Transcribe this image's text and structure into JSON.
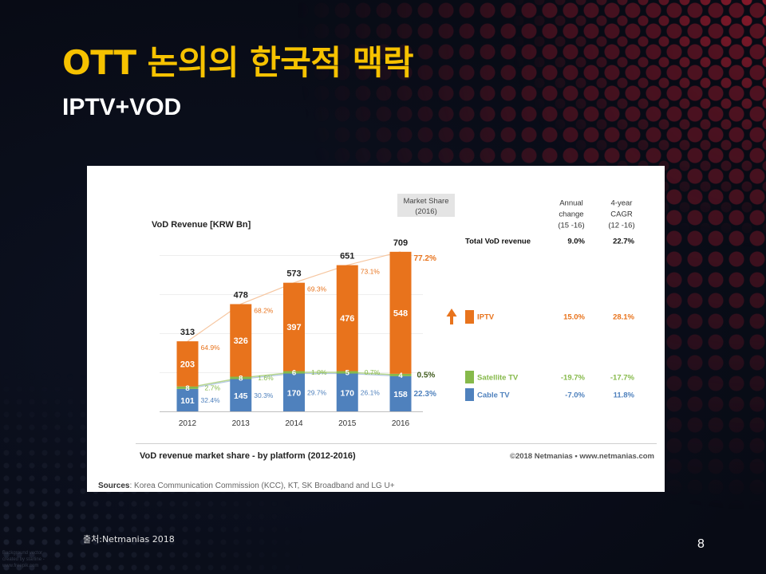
{
  "slide": {
    "title": "OTT 논의의 한국적 맥락",
    "subtitle": "IPTV+VOD",
    "source_note": "출처:Netmanias 2018",
    "page_number": "8",
    "credit": [
      "Background vector",
      "created by starline -",
      "www.freepik.com"
    ]
  },
  "colors": {
    "background": "#090c16",
    "title": "#f6c200",
    "dots": "#561322",
    "dots_highlight": "#9b1c2e"
  },
  "chart_data": {
    "type": "bar",
    "stacked": true,
    "title": "VoD revenue market share - by platform (2012-2016)",
    "ylabel": "VoD Revenue [KRW Bn]",
    "categories": [
      "2012",
      "2013",
      "2014",
      "2015",
      "2016"
    ],
    "totals": [
      313,
      478,
      573,
      651,
      709
    ],
    "series": [
      {
        "name": "Cable TV",
        "color": "#4f81bd",
        "values": [
          101,
          145,
          170,
          170,
          158
        ],
        "share": [
          "32.4%",
          "30.3%",
          "29.7%",
          "26.1%",
          "22.3%"
        ],
        "annual_change": "-7.0%",
        "cagr": "11.8%"
      },
      {
        "name": "Satellite TV",
        "color": "#86b94a",
        "values": [
          8,
          8,
          6,
          5,
          4
        ],
        "share": [
          "2.7%",
          "1.6%",
          "1.0%",
          "0.7%",
          "0.5%"
        ],
        "annual_change": "-19.7%",
        "cagr": "-17.7%"
      },
      {
        "name": "IPTV",
        "color": "#e8731c",
        "values": [
          203,
          326,
          397,
          476,
          548
        ],
        "share": [
          "64.9%",
          "68.2%",
          "69.3%",
          "73.1%",
          "77.2%"
        ],
        "annual_change": "15.0%",
        "cagr": "28.1%",
        "trend_icon": "up-arrow-icon"
      }
    ],
    "market_share_header": [
      "Market Share",
      "(2016)"
    ],
    "table_columns": [
      [
        "Annual",
        "change",
        "(15 -16)"
      ],
      [
        "4-year",
        "CAGR",
        "(12 -16)"
      ]
    ],
    "total": {
      "label": "Total VoD revenue",
      "annual_change": "9.0%",
      "cagr": "22.7%"
    },
    "copyright": "©2018 Netmanias • www.netmanias.com",
    "sources_label": "Sources",
    "sources_text": ": Korea Communication Commission (KCC), KT, SK Broadband and LG U+",
    "grid": true,
    "legend": "right"
  }
}
